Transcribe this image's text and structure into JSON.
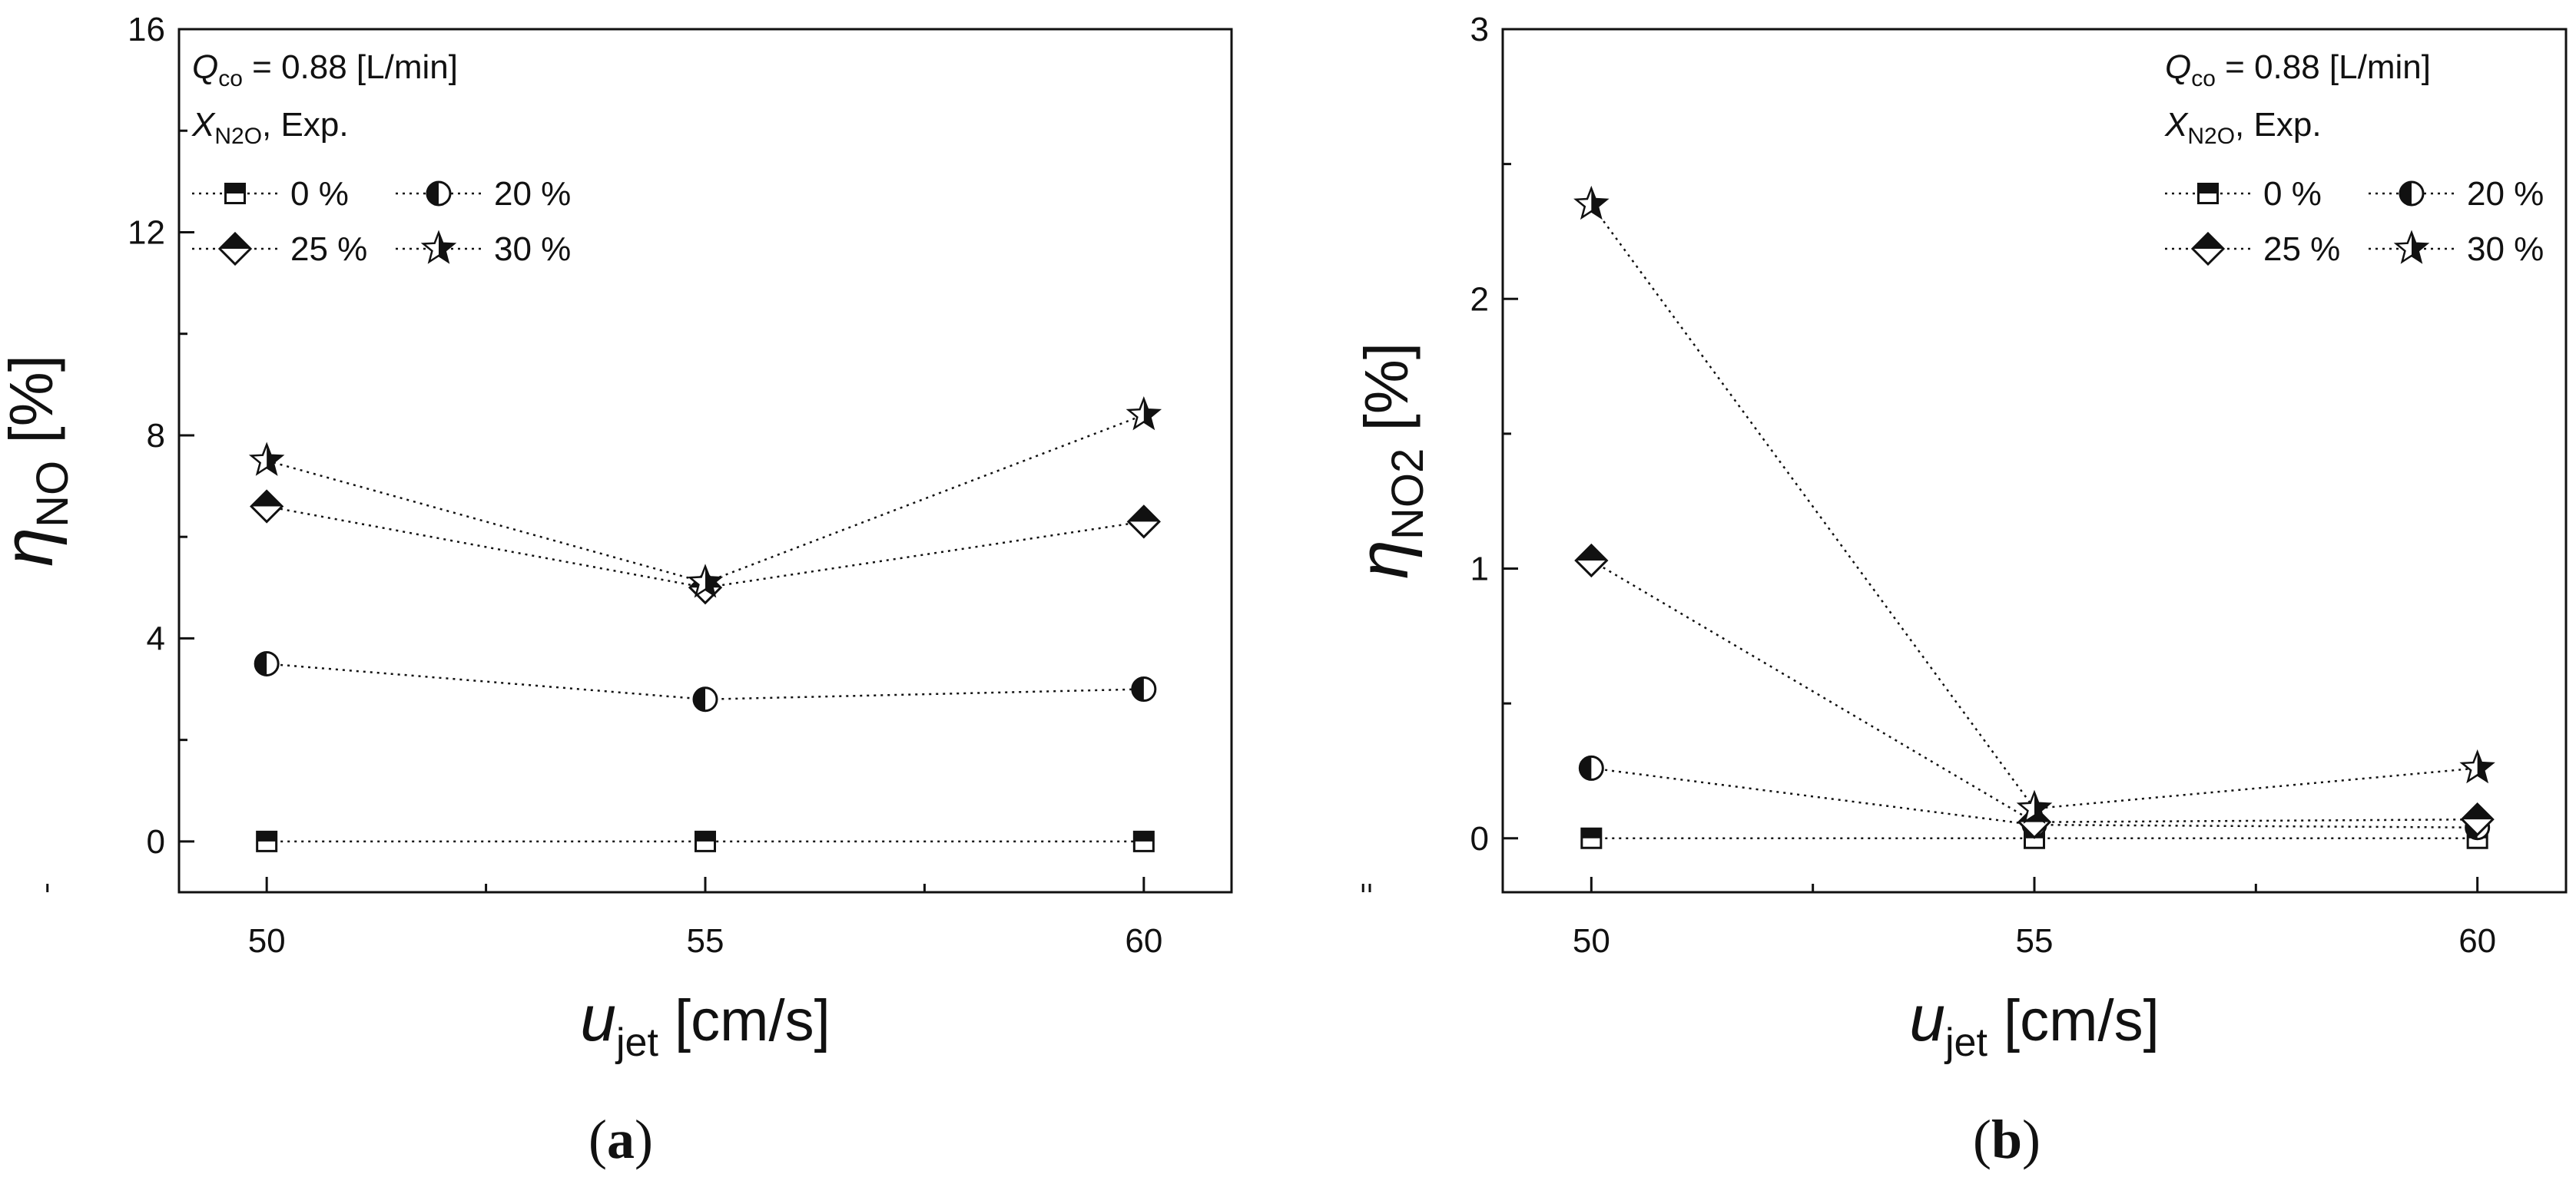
{
  "figure": {
    "background": "#ffffff",
    "ink": "#111111"
  },
  "chart_data": [
    {
      "panel": "a",
      "type": "line",
      "caption": {
        "open": "(",
        "letter": "a",
        "close": ")"
      },
      "ylabel": {
        "symbol": "η",
        "subscript": "NO",
        "unit": "[%]"
      },
      "xlabel": {
        "symbol": "u",
        "subscript": "jet",
        "unit": "[cm/s]"
      },
      "xlim": [
        49,
        61
      ],
      "ylim": [
        -1,
        16
      ],
      "xticks": [
        50,
        55,
        60
      ],
      "xtick_labels": [
        "50",
        "55",
        "60"
      ],
      "yticks": [
        0,
        4,
        8,
        12,
        16
      ],
      "ytick_labels": [
        "0",
        "4",
        "8",
        "12",
        "16"
      ],
      "categories": [
        50,
        55,
        60
      ],
      "legend": {
        "placement": "top-left",
        "flow": {
          "label": "Q",
          "subscript": "co",
          "text": " = 0.88 [L/min]"
        },
        "group": {
          "label": "X",
          "subscript": "N2O",
          "text": ", Exp."
        }
      },
      "series": [
        {
          "name": "0 %",
          "marker": "square",
          "values": [
            0.0,
            0.0,
            0.0
          ]
        },
        {
          "name": "20 %",
          "marker": "circle",
          "values": [
            3.5,
            2.8,
            3.0
          ]
        },
        {
          "name": "25 %",
          "marker": "diamond",
          "values": [
            6.6,
            5.0,
            6.3
          ]
        },
        {
          "name": "30 %",
          "marker": "star",
          "values": [
            7.5,
            5.1,
            8.4
          ]
        }
      ]
    },
    {
      "panel": "b",
      "type": "line",
      "caption": {
        "open": "(",
        "letter": "b",
        "close": ")"
      },
      "ylabel": {
        "symbol": "η",
        "subscript": "NO2",
        "unit": "[%]"
      },
      "xlabel": {
        "symbol": "u",
        "subscript": "jet",
        "unit": "[cm/s]"
      },
      "xlim": [
        49,
        61
      ],
      "ylim": [
        -0.2,
        3
      ],
      "xticks": [
        50,
        55,
        60
      ],
      "xtick_labels": [
        "50",
        "55",
        "60"
      ],
      "yticks": [
        0,
        1,
        2,
        3
      ],
      "ytick_labels": [
        "0",
        "1",
        "2",
        "3"
      ],
      "categories": [
        50,
        55,
        60
      ],
      "legend": {
        "placement": "top-right",
        "flow": {
          "label": "Q",
          "subscript": "co",
          "text": " = 0.88 [L/min]"
        },
        "group": {
          "label": "X",
          "subscript": "N2O",
          "text": ", Exp."
        }
      },
      "series": [
        {
          "name": "0 %",
          "marker": "square",
          "values": [
            0.0,
            0.0,
            0.0
          ]
        },
        {
          "name": "20 %",
          "marker": "circle",
          "values": [
            0.26,
            0.05,
            0.04
          ]
        },
        {
          "name": "25 %",
          "marker": "diamond",
          "values": [
            1.03,
            0.06,
            0.07
          ]
        },
        {
          "name": "30 %",
          "marker": "star",
          "values": [
            2.35,
            0.11,
            0.26
          ]
        }
      ]
    }
  ]
}
